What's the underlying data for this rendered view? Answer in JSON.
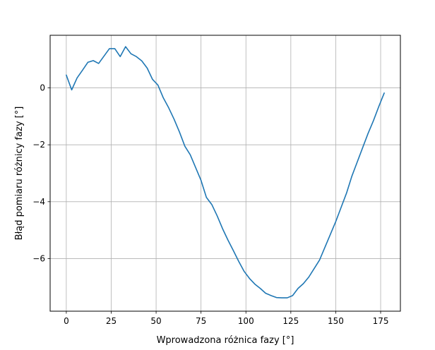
{
  "chart_data": {
    "type": "line",
    "title": "",
    "xlabel": "Wprowadzona różnica fazy [°]",
    "ylabel": "Błąd pomiaru różnicy fazy [°]",
    "xlim": [
      -9,
      186
    ],
    "ylim": [
      -7.85,
      1.85
    ],
    "xticks": [
      0,
      25,
      50,
      75,
      100,
      125,
      150,
      175
    ],
    "yticks": [
      0,
      -2,
      -4,
      -6
    ],
    "ytick_labels": [
      "0",
      "−2",
      "−4",
      "−6"
    ],
    "grid": true,
    "series": [
      {
        "color": "#1f77b4",
        "x": [
          0,
          3,
          6,
          9,
          12,
          15,
          18,
          21,
          24,
          27,
          30,
          33,
          36,
          39,
          42,
          45,
          48,
          51,
          54,
          57,
          60,
          63,
          66,
          69,
          72,
          75,
          78,
          81,
          84,
          87,
          90,
          93,
          96,
          99,
          102,
          105,
          108,
          111,
          114,
          117,
          120,
          123,
          126,
          129,
          132,
          135,
          138,
          141,
          144,
          147,
          150,
          153,
          156,
          159,
          162,
          165,
          168,
          171,
          174,
          177
        ],
        "y": [
          0.45,
          -0.07,
          0.35,
          0.62,
          0.9,
          0.96,
          0.86,
          1.12,
          1.38,
          1.38,
          1.1,
          1.45,
          1.2,
          1.1,
          0.95,
          0.7,
          0.3,
          0.1,
          -0.35,
          -0.7,
          -1.1,
          -1.55,
          -2.05,
          -2.35,
          -2.8,
          -3.25,
          -3.85,
          -4.1,
          -4.5,
          -4.95,
          -5.35,
          -5.72,
          -6.1,
          -6.45,
          -6.7,
          -6.9,
          -7.05,
          -7.22,
          -7.3,
          -7.37,
          -7.38,
          -7.38,
          -7.3,
          -7.05,
          -6.88,
          -6.65,
          -6.35,
          -6.05,
          -5.6,
          -5.15,
          -4.7,
          -4.2,
          -3.7,
          -3.1,
          -2.6,
          -2.1,
          -1.6,
          -1.15,
          -0.65,
          -0.18
        ]
      }
    ]
  }
}
